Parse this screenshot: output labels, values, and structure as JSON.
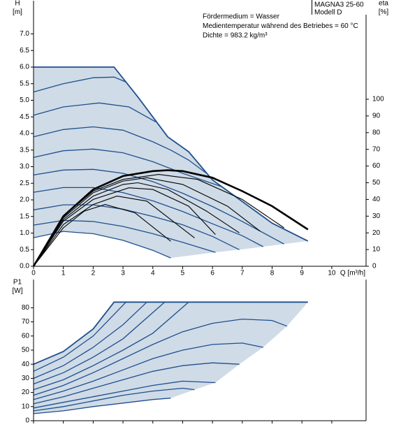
{
  "chart_data": [
    {
      "type": "line",
      "ylabel": [
        "H",
        "[m]"
      ],
      "y2label": [
        "eta",
        "[%]"
      ],
      "xlabel": "Q [m³/h]",
      "annotations": [
        "Fördermedium = Wasser",
        "Medientemperatur während des Betriebes = 60 °C",
        "Dichte = 983.2 kg/m³"
      ],
      "model": [
        "MAGNA3 25-60",
        "Modell D"
      ],
      "xlim": [
        0,
        11.15
      ],
      "xticks": [
        0,
        1,
        2,
        3,
        4,
        5,
        6,
        7,
        8,
        9,
        10
      ],
      "ylim": [
        0,
        8
      ],
      "yticks": [
        {
          "value": 0,
          "label": "0.0"
        },
        0.5,
        {
          "value": 1,
          "label": "1.0"
        },
        1.5,
        {
          "value": 2,
          "label": "2.0"
        },
        2.5,
        {
          "value": 3,
          "label": "3.0"
        },
        3.5,
        {
          "value": 4,
          "label": "4.0"
        },
        4.5,
        {
          "value": 5,
          "label": "5.0"
        },
        5.5,
        {
          "value": 6,
          "label": "6.0"
        },
        6.5,
        {
          "value": 7,
          "label": "7.0"
        }
      ],
      "y2lim": [
        0,
        159
      ],
      "y2ticks": [
        0,
        10,
        20,
        30,
        40,
        50,
        60,
        70,
        80,
        90,
        100
      ],
      "fill": "#cfdbe6",
      "series": [
        {
          "color": "#1f4f8f",
          "x": [
            0,
            2.7,
            3.5,
            4.5,
            5.2,
            6,
            7,
            8,
            9.2
          ],
          "values": [
            6.0,
            6.0,
            5.1,
            3.9,
            3.45,
            2.6,
            1.95,
            1.3,
            0.76
          ]
        },
        {
          "color": "#1f4f8f",
          "x": [
            0,
            1,
            2,
            2.7,
            3.1
          ],
          "values": [
            5.25,
            5.5,
            5.68,
            5.7,
            5.55
          ]
        },
        {
          "color": "#1f4f8f",
          "x": [
            0,
            1,
            2.2,
            3.2,
            4.1
          ],
          "values": [
            4.55,
            4.8,
            4.92,
            4.8,
            4.35
          ]
        },
        {
          "color": "#1f4f8f",
          "x": [
            0,
            1,
            2,
            3,
            4,
            4.6,
            5.2,
            5.8
          ],
          "values": [
            3.9,
            4.12,
            4.2,
            4.1,
            3.75,
            3.5,
            3.2,
            2.8
          ]
        },
        {
          "color": "#1f4f8f",
          "x": [
            0,
            1,
            2,
            3,
            4,
            5,
            6.3
          ],
          "values": [
            3.28,
            3.48,
            3.53,
            3.42,
            3.15,
            2.8,
            2.4
          ]
        },
        {
          "color": "#1f4f8f",
          "x": [
            0,
            1,
            2,
            3,
            4,
            5,
            6,
            7,
            8.4
          ],
          "values": [
            2.75,
            2.9,
            2.92,
            2.8,
            2.55,
            2.2,
            1.8,
            1.35,
            0.67
          ]
        },
        {
          "color": "#1f4f8f",
          "x": [
            0,
            1,
            2,
            3,
            4,
            5,
            6,
            7,
            7.7
          ],
          "values": [
            2.23,
            2.37,
            2.37,
            2.22,
            1.97,
            1.65,
            1.28,
            0.92,
            0.59
          ]
        },
        {
          "color": "#1f4f8f",
          "x": [
            0,
            1,
            2,
            3,
            4,
            5,
            6,
            6.9
          ],
          "values": [
            1.7,
            1.85,
            1.85,
            1.72,
            1.5,
            1.25,
            0.9,
            0.5
          ]
        },
        {
          "color": "#1f4f8f",
          "x": [
            0,
            1,
            2,
            3,
            4,
            5,
            6.1
          ],
          "values": [
            1.24,
            1.38,
            1.35,
            1.2,
            0.98,
            0.72,
            0.42
          ]
        },
        {
          "color": "#1f4f8f",
          "x": [
            0,
            1,
            2,
            3,
            4,
            4.6
          ],
          "values": [
            0.86,
            1.05,
            0.98,
            0.78,
            0.48,
            0.25
          ]
        },
        {
          "color": "#000000",
          "axis": "y2",
          "x": [
            0,
            1,
            2,
            3,
            4,
            4.5,
            5,
            6,
            7,
            8,
            9.2
          ],
          "values": [
            0,
            30,
            46,
            54,
            57,
            57.5,
            57,
            53,
            45,
            36,
            22
          ]
        },
        {
          "color": "#000000",
          "axis": "y2",
          "x": [
            0,
            1,
            2,
            3,
            4.2,
            5.5,
            7,
            8.4
          ],
          "values": [
            0,
            30,
            45,
            52,
            55,
            52,
            40,
            23
          ]
        },
        {
          "color": "#000000",
          "axis": "y2",
          "x": [
            0,
            1,
            2,
            3,
            3.8,
            5,
            6.5,
            7.6
          ],
          "values": [
            0,
            29,
            44,
            51,
            53,
            49,
            36,
            21
          ]
        },
        {
          "color": "#000000",
          "axis": "y2",
          "x": [
            0,
            1,
            2,
            3,
            3.5,
            4.5,
            5.8,
            6.9
          ],
          "values": [
            0,
            28,
            42,
            49,
            50,
            46,
            33,
            20
          ]
        },
        {
          "color": "#000000",
          "axis": "y2",
          "x": [
            0,
            1,
            2,
            3.2,
            4,
            5.2,
            6.1
          ],
          "values": [
            0,
            27,
            40,
            47,
            46,
            36,
            19
          ]
        },
        {
          "color": "#000000",
          "axis": "y2",
          "x": [
            0,
            1,
            2,
            2.8,
            3.8,
            5.4
          ],
          "values": [
            0,
            25,
            37,
            42,
            39,
            17
          ]
        },
        {
          "color": "#000000",
          "axis": "y2",
          "x": [
            0,
            1,
            1.7,
            2.4,
            3.4,
            4.6
          ],
          "values": [
            0,
            23,
            33,
            37,
            32,
            15
          ]
        }
      ]
    },
    {
      "type": "line",
      "ylabel": [
        "P1",
        "[W]"
      ],
      "xlim": [
        0,
        11.15
      ],
      "ylim": [
        0,
        100
      ],
      "yticks": [
        0,
        10,
        20,
        30,
        40,
        50,
        60,
        70,
        80
      ],
      "fill": "#cfdbe6",
      "series": [
        {
          "color": "#1f4f8f",
          "x": [
            0,
            1,
            2,
            2.7,
            9.2
          ],
          "values": [
            40,
            49,
            65,
            84,
            84
          ]
        },
        {
          "color": "#1f4f8f",
          "x": [
            0,
            1,
            2,
            3.1
          ],
          "values": [
            35,
            45,
            60,
            84
          ]
        },
        {
          "color": "#1f4f8f",
          "x": [
            0,
            1,
            2,
            3,
            3.8
          ],
          "values": [
            30,
            39,
            52,
            68,
            84
          ]
        },
        {
          "color": "#1f4f8f",
          "x": [
            0,
            1,
            2,
            3,
            4.4
          ],
          "values": [
            26,
            34,
            45,
            58,
            84
          ]
        },
        {
          "color": "#1f4f8f",
          "x": [
            0,
            1,
            2,
            3,
            4,
            5.2
          ],
          "values": [
            22,
            29,
            39,
            50,
            62,
            84
          ]
        },
        {
          "color": "#1f4f8f",
          "x": [
            0,
            1,
            2,
            3,
            4,
            5,
            6,
            7,
            8,
            8.5
          ],
          "values": [
            18,
            25,
            34,
            44,
            54,
            63,
            69,
            72,
            71,
            67
          ]
        },
        {
          "color": "#1f4f8f",
          "x": [
            0,
            1,
            2,
            3,
            4,
            5,
            6,
            7,
            7.7
          ],
          "values": [
            15,
            21,
            28,
            36,
            44,
            50,
            54,
            55,
            52
          ]
        },
        {
          "color": "#1f4f8f",
          "x": [
            0,
            1,
            2,
            3,
            4,
            5,
            6,
            6.9
          ],
          "values": [
            12,
            17,
            23,
            29,
            35,
            39,
            41,
            40
          ]
        },
        {
          "color": "#1f4f8f",
          "x": [
            0,
            1,
            2,
            3,
            4,
            5,
            6.1
          ],
          "values": [
            9,
            13,
            17,
            21,
            25,
            28,
            27
          ]
        },
        {
          "color": "#1f4f8f",
          "x": [
            0,
            1,
            2,
            3,
            4,
            5,
            5.4
          ],
          "values": [
            7,
            10,
            14,
            18,
            21,
            23,
            22
          ]
        },
        {
          "color": "#1f4f8f",
          "x": [
            0,
            1,
            2,
            3,
            4,
            4.6
          ],
          "values": [
            5,
            7,
            10,
            12.5,
            15,
            16
          ]
        }
      ]
    }
  ]
}
